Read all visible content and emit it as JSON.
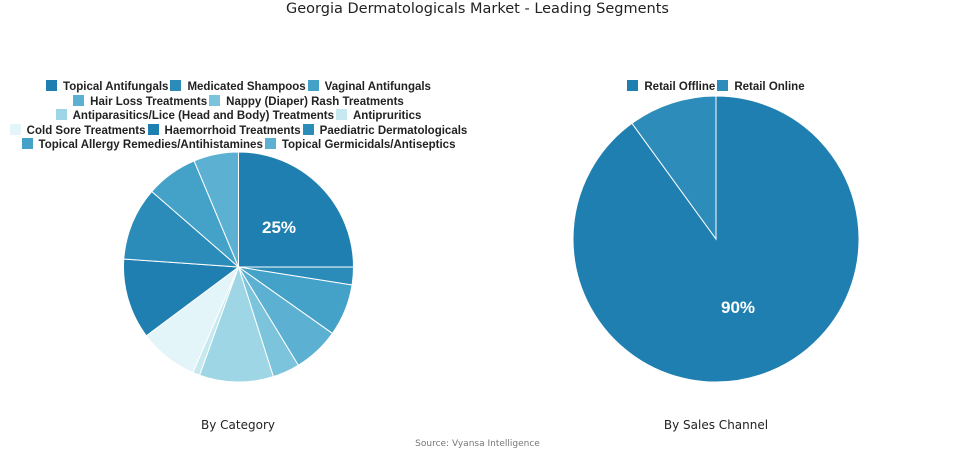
{
  "title": "Georgia Dermatologicals Market - Leading Segments",
  "source": "Source: Vyansa Intelligence",
  "chart_data": [
    {
      "type": "pie",
      "title": "By Category",
      "legend_position": "top",
      "categories": [
        "Topical Antifungals",
        "Medicated Shampoos",
        "Vaginal Antifungals",
        "Hair Loss Treatments",
        "Nappy (Diaper) Rash Treatments",
        "Antiparasitics/Lice (Head and Body) Treatments",
        "Antipruritics",
        "Cold Sore Treatments",
        "Haemorrhoid Treatments",
        "Paediatric Dermatologicals",
        "Topical Allergy Remedies/Antihistamines",
        "Topical Germicidals/Antiseptics"
      ],
      "values": [
        25,
        2.5,
        7.3,
        6.5,
        3.8,
        10.4,
        1.0,
        8.3,
        11.3,
        10.3,
        7.3,
        6.3
      ],
      "colors": [
        "#1f7fb0",
        "#2b8cba",
        "#44a2c9",
        "#5cb1d3",
        "#7cc4dc",
        "#9ed6e5",
        "#c6e9f0",
        "#e4f5f9",
        "#1f7fb0",
        "#2b8cba",
        "#44a2c9",
        "#5cb1d3"
      ],
      "labels_shown": [
        "25%"
      ]
    },
    {
      "type": "pie",
      "title": "By Sales Channel",
      "legend_position": "top",
      "categories": [
        "Retail Offline",
        "Retail Online"
      ],
      "values": [
        90,
        10
      ],
      "colors": [
        "#1f7fb0",
        "#2e8cba"
      ],
      "labels_shown": [
        "90%"
      ]
    }
  ],
  "left": {
    "caption": "By Category",
    "label": "25%",
    "legend_rows": [
      [
        {
          "label": "Topical Antifungals",
          "color": "#1f7fb0"
        },
        {
          "label": "Medicated Shampoos",
          "color": "#2b8cba"
        },
        {
          "label": "Vaginal Antifungals",
          "color": "#44a2c9"
        }
      ],
      [
        {
          "label": "Hair Loss Treatments",
          "color": "#5cb1d3"
        },
        {
          "label": "Nappy (Diaper) Rash Treatments",
          "color": "#7cc4dc"
        }
      ],
      [
        {
          "label": "Antiparasitics/Lice (Head and Body) Treatments",
          "color": "#9ed6e5"
        },
        {
          "label": "Antipruritics",
          "color": "#c6e9f0"
        }
      ],
      [
        {
          "label": "Cold Sore Treatments",
          "color": "#e4f5f9"
        },
        {
          "label": "Haemorrhoid Treatments",
          "color": "#1f7fb0"
        },
        {
          "label": "Paediatric Dermatologicals",
          "color": "#2b8cba"
        }
      ],
      [
        {
          "label": "Topical Allergy Remedies/Antihistamines",
          "color": "#44a2c9"
        },
        {
          "label": "Topical Germicidals/Antiseptics",
          "color": "#5cb1d3"
        }
      ]
    ]
  },
  "right": {
    "caption": "By Sales Channel",
    "label": "90%",
    "legend_rows": [
      [
        {
          "label": "Retail Offline",
          "color": "#1f7fb0"
        },
        {
          "label": "Retail Online",
          "color": "#2e8cba"
        }
      ]
    ]
  }
}
